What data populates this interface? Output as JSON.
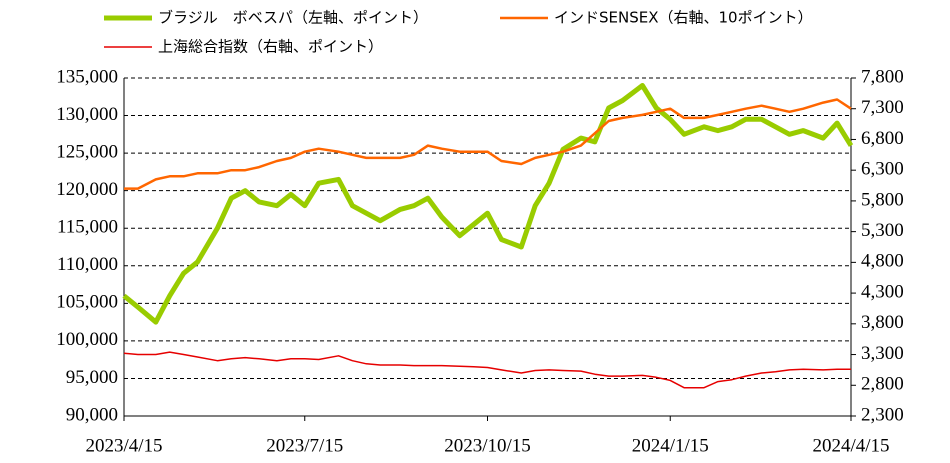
{
  "chart_data": {
    "type": "line",
    "x": [
      "2023/4/15",
      "2023/4/22",
      "2023/5/1",
      "2023/5/8",
      "2023/5/15",
      "2023/5/22",
      "2023/6/1",
      "2023/6/8",
      "2023/6/15",
      "2023/6/22",
      "2023/7/1",
      "2023/7/8",
      "2023/7/15",
      "2023/7/22",
      "2023/8/1",
      "2023/8/8",
      "2023/8/15",
      "2023/8/22",
      "2023/9/1",
      "2023/9/8",
      "2023/9/15",
      "2023/9/22",
      "2023/10/1",
      "2023/10/8",
      "2023/10/15",
      "2023/10/22",
      "2023/11/1",
      "2023/11/8",
      "2023/11/15",
      "2023/11/22",
      "2023/12/1",
      "2023/12/8",
      "2023/12/15",
      "2023/12/22",
      "2024/1/1",
      "2024/1/8",
      "2024/1/15",
      "2024/1/22",
      "2024/2/1",
      "2024/2/8",
      "2024/2/15",
      "2024/2/22",
      "2024/3/1",
      "2024/3/8",
      "2024/3/15",
      "2024/3/22",
      "2024/4/1",
      "2024/4/8",
      "2024/4/15"
    ],
    "series": [
      {
        "name": "ブラジル　ボベスパ（左軸、ポイント）",
        "color": "#99cc00",
        "width": 5,
        "values": [
          106000,
          104500,
          102500,
          106000,
          109000,
          110500,
          115000,
          119000,
          120000,
          118500,
          118000,
          119500,
          118000,
          121000,
          121500,
          118000,
          117000,
          116000,
          117500,
          118000,
          119000,
          116500,
          114000,
          115500,
          117000,
          113500,
          112500,
          118000,
          121000,
          125500,
          127000,
          126500,
          131000,
          132000,
          134000,
          131000,
          129500,
          127500,
          128500,
          128000,
          128500,
          129500,
          129500,
          128500,
          127500,
          128000,
          127000,
          129000,
          126000
        ]
      },
      {
        "name": "インドSENSEX（右軸、10ポイント）",
        "color": "#ff6600",
        "width": 2.5,
        "axis": "y2",
        "values": [
          6000,
          6000,
          6150,
          6200,
          6200,
          6250,
          6250,
          6300,
          6300,
          6350,
          6450,
          6500,
          6600,
          6650,
          6600,
          6550,
          6500,
          6500,
          6500,
          6550,
          6700,
          6650,
          6600,
          6600,
          6600,
          6450,
          6400,
          6500,
          6550,
          6600,
          6700,
          6900,
          7100,
          7150,
          7200,
          7250,
          7300,
          7150,
          7150,
          7200,
          7250,
          7300,
          7350,
          7300,
          7250,
          7300,
          7400,
          7450,
          7300
        ]
      },
      {
        "name": "上海総合指数（右軸、ポイント）",
        "color": "#e60000",
        "width": 1.5,
        "axis": "y2",
        "values": [
          3320,
          3300,
          3300,
          3340,
          3300,
          3260,
          3200,
          3230,
          3250,
          3230,
          3200,
          3230,
          3230,
          3220,
          3280,
          3200,
          3150,
          3130,
          3130,
          3120,
          3120,
          3120,
          3110,
          3100,
          3090,
          3050,
          3000,
          3040,
          3050,
          3040,
          3030,
          2980,
          2950,
          2950,
          2960,
          2930,
          2880,
          2760,
          2760,
          2860,
          2890,
          2950,
          3000,
          3020,
          3050,
          3060,
          3050,
          3060,
          3060
        ]
      }
    ],
    "xlim": [
      "2023/4/15",
      "2024/4/15"
    ],
    "xticks": [
      "2023/4/15",
      "2023/7/15",
      "2023/10/15",
      "2024/1/15",
      "2024/4/15"
    ],
    "ylim": [
      90000,
      135000
    ],
    "yticks": [
      {
        "value": 90000,
        "label": "90,000"
      },
      {
        "value": 95000,
        "label": "95,000"
      },
      {
        "value": 100000,
        "label": "100,000"
      },
      {
        "value": 105000,
        "label": "105,000"
      },
      {
        "value": 110000,
        "label": "110,000"
      },
      {
        "value": 115000,
        "label": "115,000"
      },
      {
        "value": 120000,
        "label": "120,000"
      },
      {
        "value": 125000,
        "label": "125,000"
      },
      {
        "value": 130000,
        "label": "130,000"
      },
      {
        "value": 135000,
        "label": "135,000"
      }
    ],
    "y2lim": [
      2300,
      7800
    ],
    "y2ticks": [
      {
        "value": 2300,
        "label": "2,300"
      },
      {
        "value": 2800,
        "label": "2,800"
      },
      {
        "value": 3300,
        "label": "3,300"
      },
      {
        "value": 3800,
        "label": "3,800"
      },
      {
        "value": 4300,
        "label": "4,300"
      },
      {
        "value": 4800,
        "label": "4,800"
      },
      {
        "value": 5300,
        "label": "5,300"
      },
      {
        "value": 5800,
        "label": "5,800"
      },
      {
        "value": 6300,
        "label": "6,300"
      },
      {
        "value": 6800,
        "label": "6,800"
      },
      {
        "value": 7300,
        "label": "7,300"
      },
      {
        "value": 7800,
        "label": "7,800"
      }
    ],
    "grid": true
  }
}
